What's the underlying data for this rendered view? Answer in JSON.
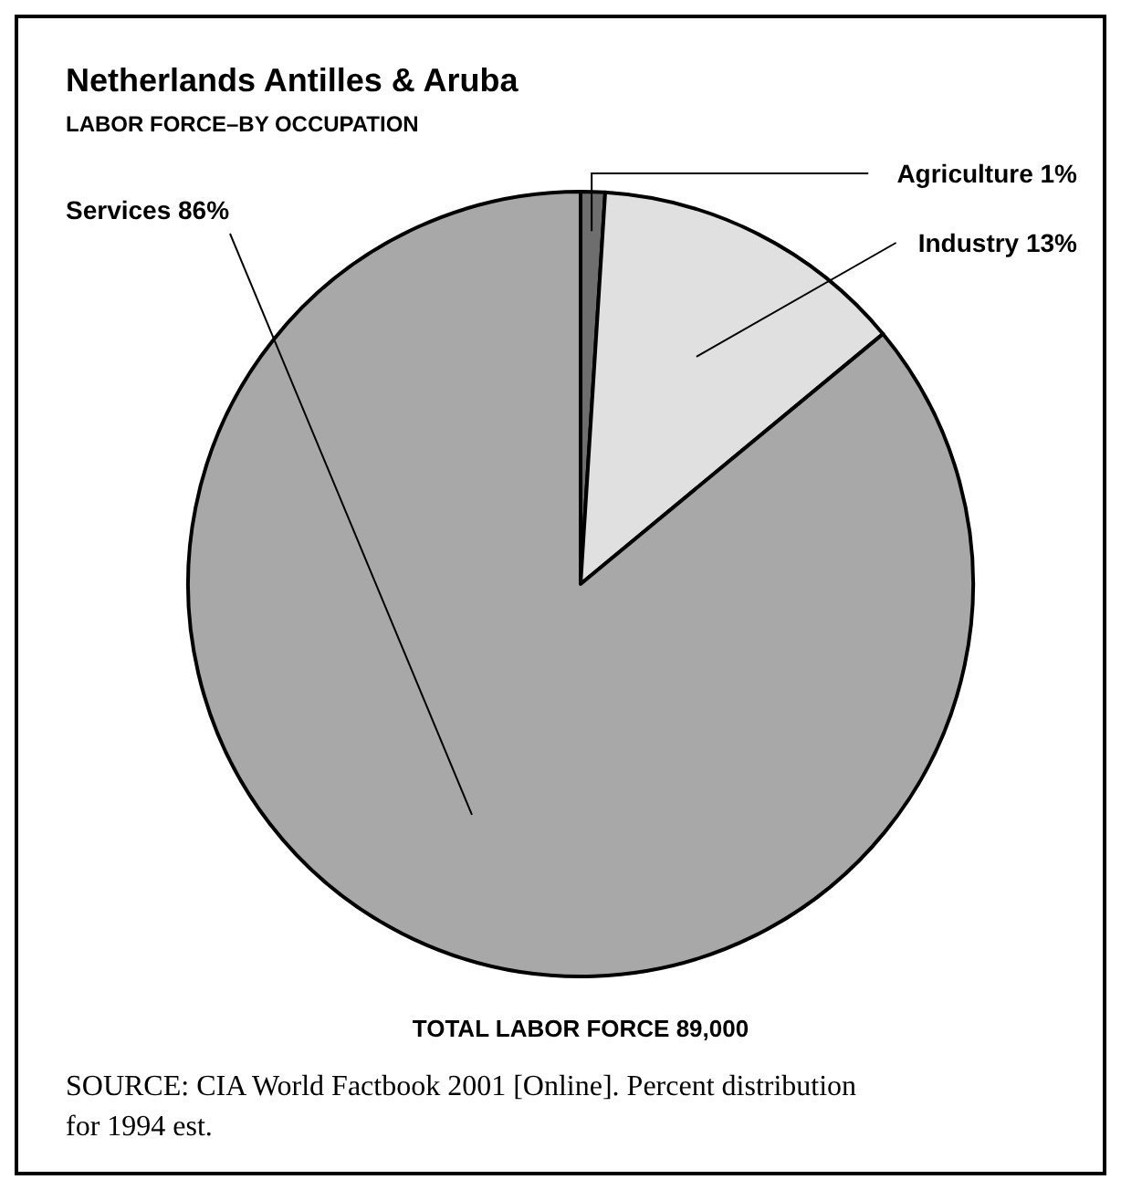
{
  "chart_data": {
    "type": "pie",
    "title": "Netherlands Antilles & Aruba",
    "subtitle": "LABOR FORCE–BY OCCUPATION",
    "categories": [
      "Agriculture",
      "Industry",
      "Services"
    ],
    "values": [
      1,
      13,
      86
    ],
    "value_labels": [
      "1%",
      "13%",
      "86%"
    ],
    "colors": [
      "#6e6e6e",
      "#e0e0e0",
      "#a8a8a8"
    ],
    "annotations": [
      "TOTAL LABOR FORCE 89,000",
      "SOURCE: CIA World Factbook 2001 [Online]. Percent distribution for 1994 est."
    ]
  }
}
